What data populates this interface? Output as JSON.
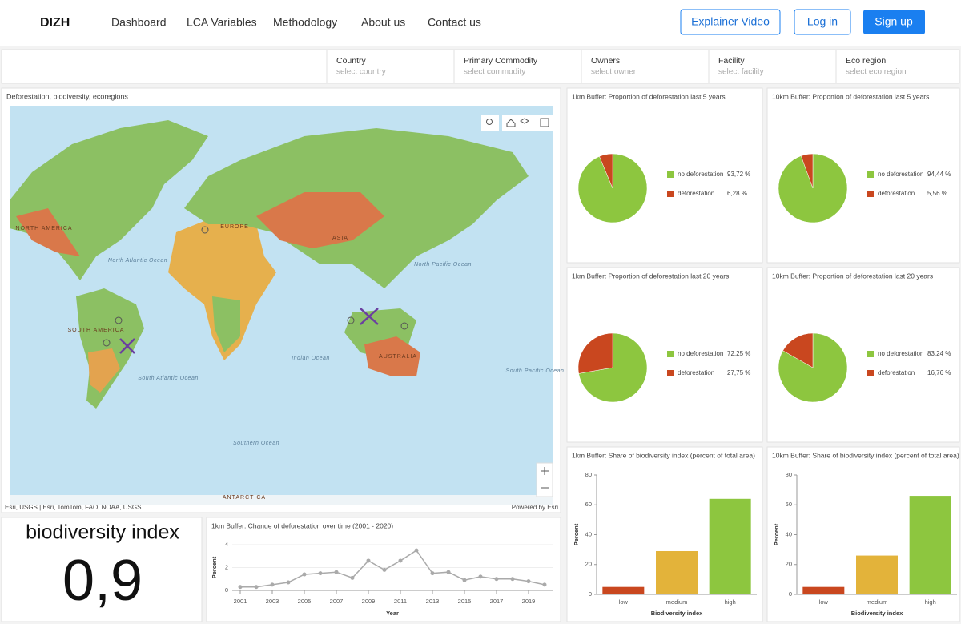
{
  "nav": {
    "logo": "DIZH",
    "links": [
      "Dashboard",
      "LCA Variables",
      "Methodology",
      "About us",
      "Contact us"
    ],
    "buttons": [
      "Explainer Video",
      "Log in",
      "Sign up"
    ]
  },
  "filters": [
    {
      "label": "Country",
      "placeholder": "select country"
    },
    {
      "label": "Primary Commodity",
      "placeholder": "select commodity"
    },
    {
      "label": "Owners",
      "placeholder": "select owner"
    },
    {
      "label": "Facility",
      "placeholder": "select facility"
    },
    {
      "label": "Eco region",
      "placeholder": "select eco region"
    }
  ],
  "map": {
    "title": "Deforestation, biodiversity, ecoregions",
    "attribution": "Esri, USGS | Esri, TomTom, FAO, NOAA, USGS",
    "powered_by": "Powered by Esri",
    "land_labels": [
      "NORTH AMERICA",
      "EUROPE",
      "ASIA",
      "SOUTH AMERICA",
      "AUSTRALIA",
      "ANTARCTICA"
    ],
    "ocean_labels": [
      "North Atlantic Ocean",
      "North Pacific Ocean",
      "South Atlantic Ocean",
      "Indian Ocean",
      "South Pacific Ocean",
      "Southern Ocean"
    ]
  },
  "biodiversity": {
    "title": "biodiversity index",
    "value": "0,9"
  },
  "chart_data": [
    {
      "type": "line",
      "title": "1km Buffer: Change of deforestation over time (2001 - 2020)",
      "x_label": "Year",
      "y_label": "Percent",
      "x": [
        2001,
        2002,
        2003,
        2004,
        2005,
        2006,
        2007,
        2008,
        2009,
        2010,
        2011,
        2012,
        2013,
        2014,
        2015,
        2016,
        2017,
        2018,
        2019,
        2020
      ],
      "series": [
        {
          "name": "Percent",
          "color": "#aaaaaa",
          "values": [
            0.3,
            0.3,
            0.5,
            0.7,
            1.4,
            1.5,
            1.6,
            1.1,
            2.6,
            1.8,
            2.6,
            3.5,
            1.5,
            1.6,
            0.9,
            1.2,
            1.0,
            1.0,
            0.8,
            0.5
          ]
        }
      ],
      "xlim": [
        2000.5,
        2020.5
      ],
      "xticks": [
        2001,
        2003,
        2005,
        2007,
        2009,
        2011,
        2013,
        2015,
        2017,
        2019
      ],
      "ylim": [
        0,
        4
      ],
      "yticks": [
        0,
        2,
        4
      ]
    },
    {
      "type": "pie",
      "title": "1km Buffer: Proportion of deforestation last 5 years",
      "categories": [
        "no deforestation",
        "deforestation"
      ],
      "values": [
        93.72,
        6.28
      ],
      "value_labels": [
        "93,72 %",
        "6,28 %"
      ],
      "colors": [
        "#8dc63f",
        "#c9471f"
      ]
    },
    {
      "type": "pie",
      "title": "10km Buffer: Proportion of deforestation last 5 years",
      "categories": [
        "no deforestation",
        "deforestation"
      ],
      "values": [
        94.44,
        5.56
      ],
      "value_labels": [
        "94,44 %",
        "5,56 %"
      ],
      "colors": [
        "#8dc63f",
        "#c9471f"
      ]
    },
    {
      "type": "pie",
      "title": "1km Buffer: Proportion of deforestation last 20 years",
      "categories": [
        "no deforestation",
        "deforestation"
      ],
      "values": [
        72.25,
        27.75
      ],
      "value_labels": [
        "72,25 %",
        "27,75 %"
      ],
      "colors": [
        "#8dc63f",
        "#c9471f"
      ]
    },
    {
      "type": "pie",
      "title": "10km Buffer: Proportion of deforestation last 20 years",
      "categories": [
        "no deforestation",
        "deforestation"
      ],
      "values": [
        83.24,
        16.76
      ],
      "value_labels": [
        "83,24 %",
        "16,76 %"
      ],
      "colors": [
        "#8dc63f",
        "#c9471f"
      ]
    },
    {
      "type": "bar",
      "title": "1km Buffer: Share of biodiversity index (percent of total area)",
      "x_label": "Biodiversity index",
      "y_label": "Percent",
      "categories": [
        "low",
        "medium",
        "high"
      ],
      "values": [
        5,
        29,
        64
      ],
      "colors": [
        "#c9471f",
        "#e3b33a",
        "#8dc63f"
      ],
      "ylim": [
        0,
        80
      ],
      "yticks": [
        0,
        20,
        40,
        60,
        80
      ]
    },
    {
      "type": "bar",
      "title": "10km Buffer: Share of biodiversity index (percent of total area)",
      "x_label": "Biodiversity index",
      "y_label": "Percent",
      "categories": [
        "low",
        "medium",
        "high"
      ],
      "values": [
        5,
        26,
        66
      ],
      "colors": [
        "#c9471f",
        "#e3b33a",
        "#8dc63f"
      ],
      "ylim": [
        0,
        80
      ],
      "yticks": [
        0,
        20,
        40,
        60,
        80
      ]
    }
  ]
}
